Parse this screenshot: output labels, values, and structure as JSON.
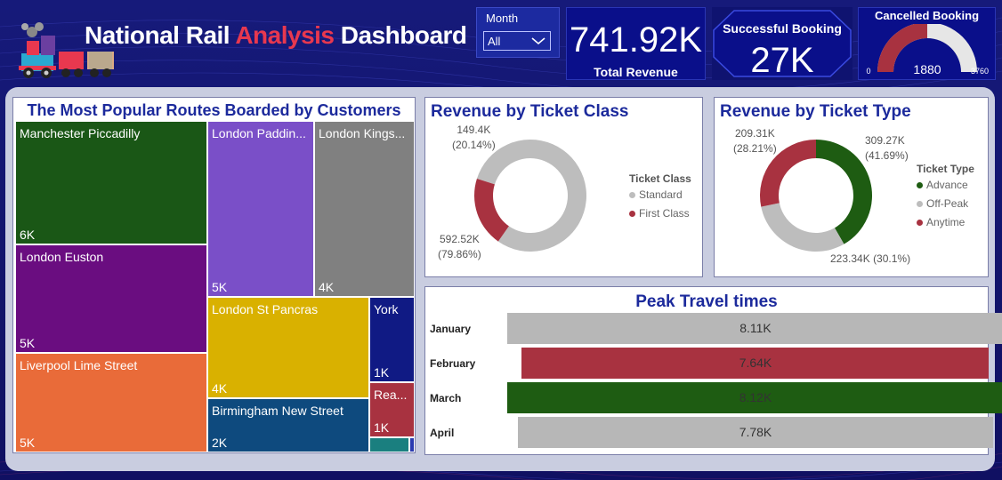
{
  "header": {
    "title_part1": "National Rail ",
    "title_part2": "Analysis",
    "title_part3": " Dashboard"
  },
  "filter": {
    "label": "Month",
    "value": "All"
  },
  "kpis": {
    "revenue": {
      "value": "741.92K",
      "label": "Total Revenue"
    },
    "success": {
      "value": "27K",
      "label": "Successful Booking"
    },
    "cancel": {
      "label": "Cancelled Booking",
      "value": "1880",
      "min": "0",
      "max": "3760",
      "fraction": 0.5
    }
  },
  "treemap": {
    "title": "The Most Popular Routes Boarded by Customers",
    "tiles": [
      {
        "name": "Manchester Piccadilly",
        "value": "6K",
        "color": "#1a5716"
      },
      {
        "name": "London Euston",
        "value": "5K",
        "color": "#6a0d80"
      },
      {
        "name": "Liverpool Lime Street",
        "value": "5K",
        "color": "#e96b39"
      },
      {
        "name": "London Paddin...",
        "value": "5K",
        "color": "#7a4fc8"
      },
      {
        "name": "London Kings...",
        "value": "4K",
        "color": "#808080"
      },
      {
        "name": "London St Pancras",
        "value": "4K",
        "color": "#d9b100"
      },
      {
        "name": "York",
        "value": "1K",
        "color": "#101a84"
      },
      {
        "name": "Birmingham New Street",
        "value": "2K",
        "color": "#0e4a7e"
      },
      {
        "name": "Rea...",
        "value": "1K",
        "color": "#a83240"
      }
    ]
  },
  "chart_data": [
    {
      "type": "pie",
      "title": "Revenue by Ticket Class",
      "legend_title": "Ticket Class",
      "legend_position": "right",
      "categories": [
        "Standard",
        "First Class"
      ],
      "values": [
        592.52,
        149.4
      ],
      "value_labels": [
        "592.52K",
        "149.4K"
      ],
      "percent_labels": [
        "(79.86%)",
        "(20.14%)"
      ],
      "colors": [
        "#bdbdbd",
        "#a83240"
      ]
    },
    {
      "type": "pie",
      "title": "Revenue by Ticket Type",
      "legend_title": "Ticket Type",
      "legend_position": "right",
      "categories": [
        "Advance",
        "Off-Peak",
        "Anytime"
      ],
      "values": [
        309.27,
        223.34,
        209.31
      ],
      "value_labels": [
        "309.27K",
        "223.34K",
        "209.31K"
      ],
      "percent_labels": [
        "(41.69%)",
        "(30.1%)",
        "(28.21%)"
      ],
      "colors": [
        "#1e5c12",
        "#bdbdbd",
        "#a83240"
      ]
    },
    {
      "type": "bar",
      "title": "Peak Travel times",
      "orientation": "horizontal-centered",
      "categories": [
        "January",
        "February",
        "March",
        "April"
      ],
      "values": [
        8.11,
        7.64,
        8.12,
        7.78
      ],
      "value_labels": [
        "8.11K",
        "7.64K",
        "8.12K",
        "7.78K"
      ],
      "colors": [
        "#b7b7b7",
        "#a83240",
        "#1e5c12",
        "#b7b7b7"
      ]
    }
  ]
}
